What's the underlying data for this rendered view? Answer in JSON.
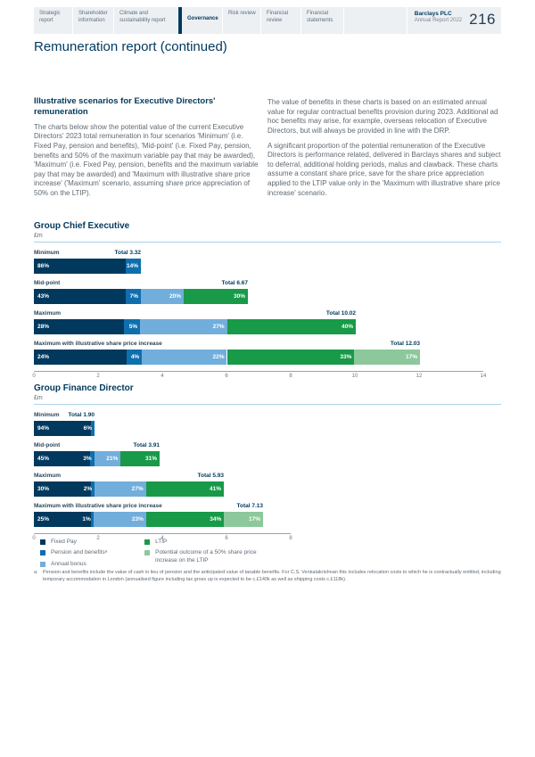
{
  "header": {
    "tabs": [
      {
        "label": "Strategic report",
        "active": false
      },
      {
        "label": "Shareholder information",
        "active": false
      },
      {
        "label": "Climate and sustainability report",
        "active": false
      },
      {
        "label": "Governance",
        "active": true
      },
      {
        "label": "Risk review",
        "active": false
      },
      {
        "label": "Financial review",
        "active": false
      },
      {
        "label": "Financial statements",
        "active": false
      }
    ],
    "brand": "Barclays PLC",
    "brand_sub": "Annual Report 2022",
    "page_number": "216"
  },
  "page_title": "Remuneration report (continued)",
  "intro": {
    "heading": "Illustrative scenarios for Executive Directors' remuneration",
    "left_paragraphs": [
      "The charts below show the potential value of the current Executive Directors' 2023 total remuneration in four scenarios 'Minimum' (i.e. Fixed Pay, pension and benefits), 'Mid-point' (i.e. Fixed Pay, pension, benefits and 50% of the maximum variable pay that may be awarded), 'Maximum' (i.e. Fixed Pay, pension, benefits and the maximum variable pay that may be awarded) and 'Maximum with illustrative share price increase' ('Maximum' scenario, assuming share price appreciation of 50% on the LTIP)."
    ],
    "right_paragraphs": [
      "The value of benefits in these charts is based on an estimated annual value for regular contractual benefits provision during 2023. Additional ad hoc benefits may arise, for example, overseas relocation of Executive Directors, but will always be provided in line with the DRP.",
      "A significant proportion of the potential remuneration of the Executive Directors is performance related, delivered in Barclays shares and subject to deferral, additional holding periods, malus and clawback. These charts assume a constant share price, save for the share price appreciation applied to the LTIP value only in the 'Maximum with illustrative share price increase' scenario."
    ]
  },
  "palette": {
    "fixed_pay": "#00395d",
    "pension_benefits": "#0f6fae",
    "annual_bonus": "#72aedb",
    "ltip": "#189a48",
    "ltip_increase": "#8cc89b"
  },
  "chart_data": [
    {
      "type": "bar",
      "orientation": "horizontal",
      "stacked": true,
      "title": "Group Chief Executive",
      "unit_label": "£m",
      "xlim": [
        0,
        14
      ],
      "x_ticks": [
        0,
        2,
        4,
        6,
        8,
        10,
        12,
        14
      ],
      "series_names": [
        "Fixed Pay",
        "Pension and benefits",
        "Annual bonus",
        "LTIP",
        "Potential outcome of a 50% share price increase on the LTIP"
      ],
      "rows": [
        {
          "label": "Minimum",
          "total": 3.32,
          "total_label": "Total 3.32",
          "segments": [
            {
              "series": "fixed_pay",
              "pct": 86
            },
            {
              "series": "pension_benefits",
              "pct": 14
            }
          ]
        },
        {
          "label": "Mid-point",
          "total": 6.67,
          "total_label": "Total 6.67",
          "segments": [
            {
              "series": "fixed_pay",
              "pct": 43
            },
            {
              "series": "pension_benefits",
              "pct": 7
            },
            {
              "series": "annual_bonus",
              "pct": 20
            },
            {
              "series": "ltip",
              "pct": 30
            }
          ]
        },
        {
          "label": "Maximum",
          "total": 10.02,
          "total_label": "Total 10.02",
          "segments": [
            {
              "series": "fixed_pay",
              "pct": 28
            },
            {
              "series": "pension_benefits",
              "pct": 5
            },
            {
              "series": "annual_bonus",
              "pct": 27
            },
            {
              "series": "ltip",
              "pct": 40
            }
          ]
        },
        {
          "label": "Maximum with illustrative share price increase",
          "total": 12.03,
          "total_label": "Total 12.03",
          "segments": [
            {
              "series": "fixed_pay",
              "pct": 24
            },
            {
              "series": "pension_benefits",
              "pct": 4
            },
            {
              "series": "annual_bonus",
              "pct": 22
            },
            {
              "series": "ltip",
              "pct": 33
            },
            {
              "series": "ltip_increase",
              "pct": 17
            }
          ]
        }
      ]
    },
    {
      "type": "bar",
      "orientation": "horizontal",
      "stacked": true,
      "title": "Group Finance Director",
      "unit_label": "£m",
      "xlim": [
        0,
        8
      ],
      "x_ticks": [
        0,
        2,
        4,
        6,
        8
      ],
      "series_names": [
        "Fixed Pay",
        "Pension and benefits",
        "Annual bonus",
        "LTIP",
        "Potential outcome of a 50% share price increase on the LTIP"
      ],
      "rows": [
        {
          "label": "Minimum",
          "total": 1.9,
          "total_label": "Total 1.90",
          "segments": [
            {
              "series": "fixed_pay",
              "pct": 94
            },
            {
              "series": "pension_benefits",
              "pct": 6
            }
          ]
        },
        {
          "label": "Mid-point",
          "total": 3.91,
          "total_label": "Total 3.91",
          "segments": [
            {
              "series": "fixed_pay",
              "pct": 45
            },
            {
              "series": "pension_benefits",
              "pct": 3
            },
            {
              "series": "annual_bonus",
              "pct": 21
            },
            {
              "series": "ltip",
              "pct": 31
            }
          ]
        },
        {
          "label": "Maximum",
          "total": 5.93,
          "total_label": "Total 5.93",
          "segments": [
            {
              "series": "fixed_pay",
              "pct": 30
            },
            {
              "series": "pension_benefits",
              "pct": 2
            },
            {
              "series": "annual_bonus",
              "pct": 27
            },
            {
              "series": "ltip",
              "pct": 41
            }
          ]
        },
        {
          "label": "Maximum with illustrative share price increase",
          "total": 7.13,
          "total_label": "Total 7.13",
          "segments": [
            {
              "series": "fixed_pay",
              "pct": 25
            },
            {
              "series": "pension_benefits",
              "pct": 1
            },
            {
              "series": "annual_bonus",
              "pct": 23
            },
            {
              "series": "ltip",
              "pct": 34
            },
            {
              "series": "ltip_increase",
              "pct": 17
            }
          ]
        }
      ]
    }
  ],
  "legend": {
    "columns": [
      [
        {
          "label": "Fixed Pay",
          "series": "fixed_pay"
        },
        {
          "label": "Pension and benefitsᵃ",
          "series": "pension_benefits"
        },
        {
          "label": "Annual bonus",
          "series": "annual_bonus"
        }
      ],
      [
        {
          "label": "LTIP",
          "series": "ltip"
        },
        {
          "label": "Potential outcome of a 50% share price increase on the LTIP",
          "series": "ltip_increase"
        }
      ]
    ]
  },
  "footnote": {
    "marker": "a.",
    "text": "Pension and benefits include the value of cash in lieu of pension and the anticipated value of taxable benefits. For C.S. Venkatakrishnan this includes relocation costs to which he is contractually entitled, including temporary accommodation in London (annualised figure including tax gross up is expected to be c.£140k as well as shipping costs c.£118k)."
  }
}
